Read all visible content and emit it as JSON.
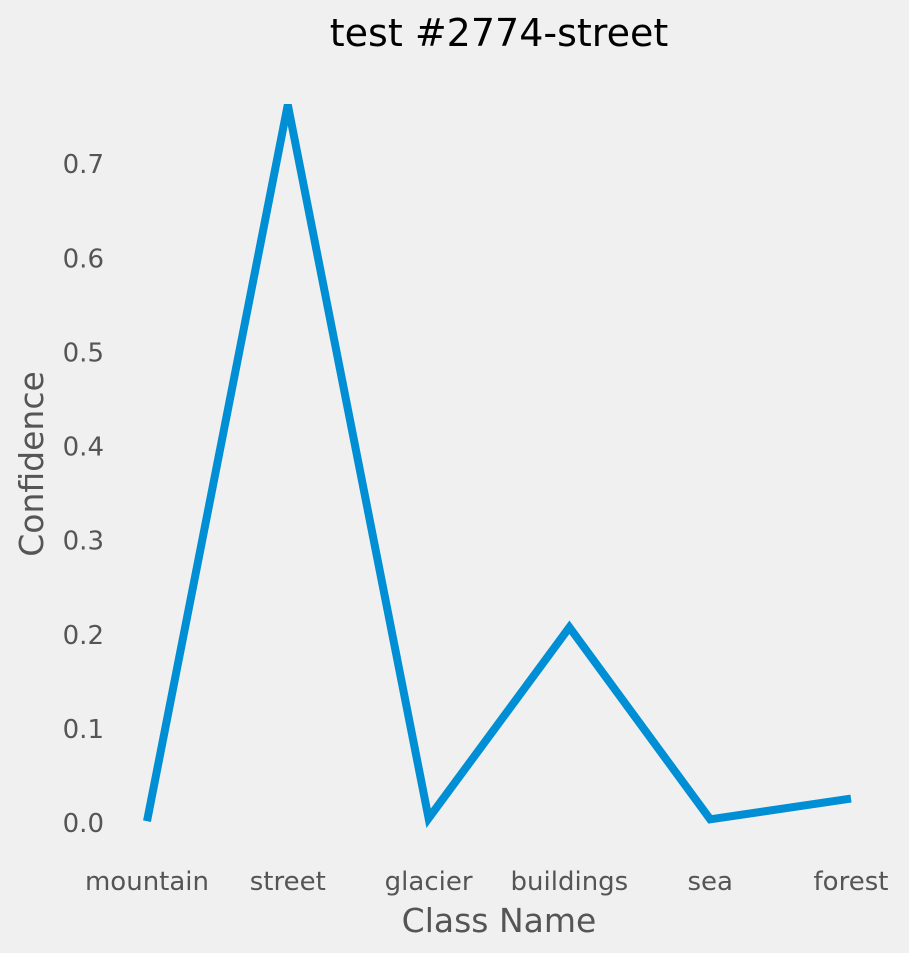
{
  "chart_data": {
    "type": "line",
    "title": "test #2774-street",
    "xlabel": "Class Name",
    "ylabel": "Confidence",
    "categories": [
      "mountain",
      "street",
      "glacier",
      "buildings",
      "sea",
      "forest"
    ],
    "series": [
      {
        "values": [
          0.002,
          0.763,
          0.005,
          0.208,
          0.004,
          0.026
        ],
        "color": "#008fd5"
      }
    ],
    "yticks": [
      "0.0",
      "0.1",
      "0.2",
      "0.3",
      "0.4",
      "0.5",
      "0.6",
      "0.7"
    ],
    "ylim": [
      -0.035,
      0.8
    ],
    "grid": false,
    "legend": "none",
    "background": "#f0f0f0"
  }
}
